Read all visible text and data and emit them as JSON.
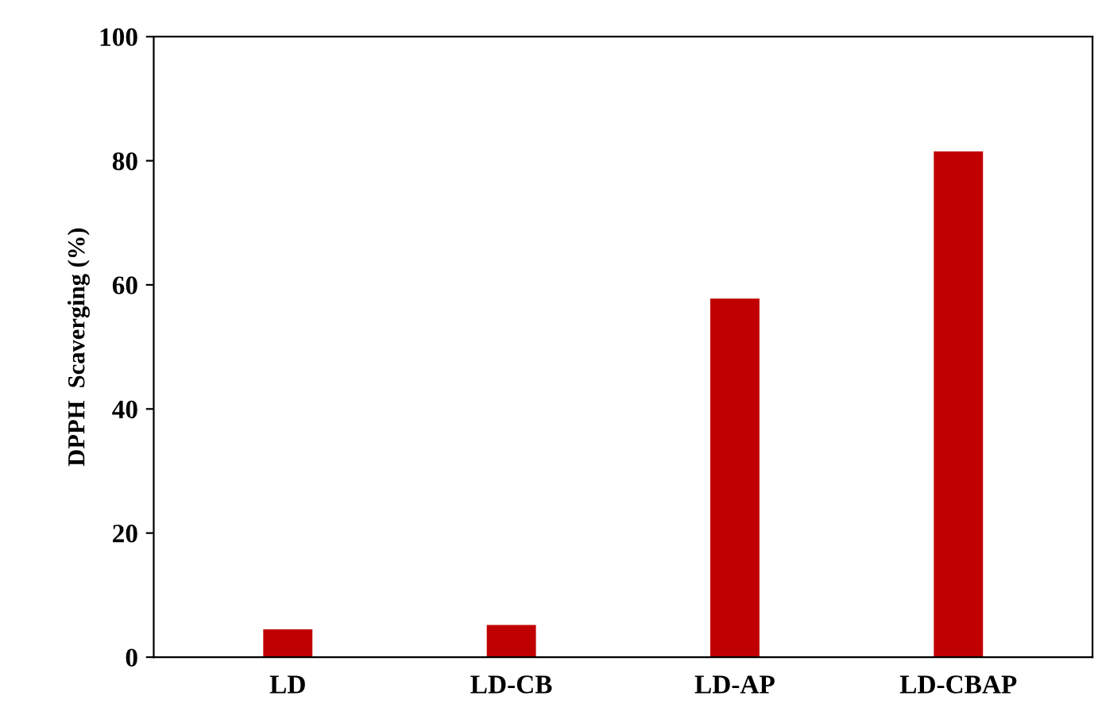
{
  "chart_data": {
    "type": "bar",
    "ylabel": "DPPH  Scaverging (%)",
    "categories": [
      "LD",
      "LD-CB",
      "LD-AP",
      "LD-CBAP"
    ],
    "values": [
      4.5,
      5.2,
      57.8,
      81.5
    ],
    "color": "#c00000",
    "ylim": [
      0,
      100
    ],
    "yticks": [
      0,
      20,
      40,
      60,
      80,
      100
    ],
    "grid": false,
    "legend": false
  }
}
